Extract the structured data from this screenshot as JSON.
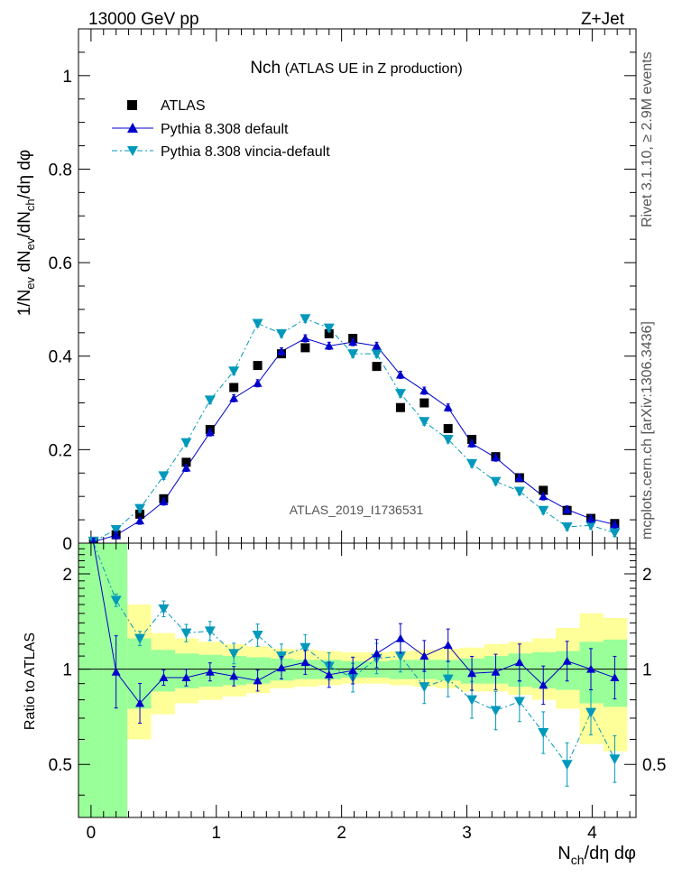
{
  "header": {
    "energy": "13000 GeV pp",
    "process": "Z+Jet",
    "plot_title_main": "Nch",
    "plot_title_sub": "(ATLAS UE in Z production)",
    "watermark": "ATLAS_2019_I1736531",
    "side_rivet": "Rivet 3.1.10, ≥ 2.9M events",
    "side_mcplots": "mcplots.cern.ch [arXiv:1306.3436]"
  },
  "chart_data": [
    {
      "type": "scatter",
      "title": "Nch (ATLAS UE in Z production)",
      "ylabel": "1/N_ev dN_ev/dN_ch/dη dφ",
      "xlabel": "N_ch/dη dφ",
      "xlim": [
        -0.1,
        4.35
      ],
      "ylim": [
        0,
        1.1
      ],
      "yticks": [
        0,
        0.2,
        0.4,
        0.6,
        0.8,
        1
      ],
      "ytick_labels": [
        "0",
        "0.2",
        "0.4",
        "0.6",
        "0.8",
        "1"
      ],
      "legend_position": "top-left",
      "x": [
        0.02,
        0.2,
        0.39,
        0.58,
        0.76,
        0.95,
        1.14,
        1.33,
        1.52,
        1.71,
        1.9,
        2.09,
        2.28,
        2.47,
        2.66,
        2.85,
        3.04,
        3.23,
        3.42,
        3.61,
        3.8,
        3.99,
        4.18
      ],
      "series": [
        {
          "name": "ATLAS",
          "color": "#000000",
          "marker": "square",
          "values": [
            0.004,
            0.018,
            0.062,
            0.095,
            0.173,
            0.243,
            0.333,
            0.38,
            0.405,
            0.418,
            0.448,
            0.438,
            0.378,
            0.29,
            0.3,
            0.245,
            0.222,
            0.185,
            0.14,
            0.113,
            0.07,
            0.053,
            0.042
          ]
        },
        {
          "name": "Pythia 8.308 default",
          "color": "#0000cc",
          "marker": "triangle-up",
          "values": [
            0.003,
            0.017,
            0.048,
            0.089,
            0.161,
            0.237,
            0.31,
            0.342,
            0.41,
            0.438,
            0.422,
            0.43,
            0.422,
            0.36,
            0.326,
            0.29,
            0.213,
            0.183,
            0.14,
            0.1,
            0.072,
            0.052,
            0.04
          ]
        },
        {
          "name": "Pythia 8.308 vincia-default",
          "color": "#0099bb",
          "marker": "triangle-down",
          "values": [
            0.004,
            0.029,
            0.074,
            0.144,
            0.215,
            0.306,
            0.368,
            0.47,
            0.448,
            0.48,
            0.46,
            0.405,
            0.405,
            0.32,
            0.26,
            0.222,
            0.17,
            0.132,
            0.111,
            0.07,
            0.035,
            0.038,
            0.022
          ]
        }
      ]
    },
    {
      "type": "scatter",
      "ylabel": "Ratio to ATLAS",
      "xlabel": "N_ch/dη dφ",
      "xlim": [
        -0.1,
        4.35
      ],
      "ylim": [
        0.34,
        2.5
      ],
      "yticks": [
        0.5,
        1,
        2
      ],
      "ytick_labels": [
        "0.5",
        "1",
        "2"
      ],
      "xticks": [
        0,
        1,
        2,
        3,
        4
      ],
      "xtick_labels": [
        "0",
        "1",
        "2",
        "3",
        "4"
      ],
      "x": [
        0.02,
        0.2,
        0.39,
        0.58,
        0.76,
        0.95,
        1.14,
        1.33,
        1.52,
        1.71,
        1.9,
        2.09,
        2.28,
        2.47,
        2.66,
        2.85,
        3.04,
        3.23,
        3.42,
        3.61,
        3.8,
        3.99,
        4.18
      ],
      "bin_edges": [
        -0.1,
        0.1,
        0.29,
        0.48,
        0.67,
        0.86,
        1.05,
        1.24,
        1.43,
        1.62,
        1.81,
        2.0,
        2.19,
        2.38,
        2.57,
        2.76,
        2.95,
        3.14,
        3.33,
        3.52,
        3.71,
        3.9,
        4.09,
        4.28
      ],
      "data_band_stat": {
        "lower": [
          0.3,
          0.3,
          0.75,
          0.85,
          0.87,
          0.88,
          0.89,
          0.9,
          0.92,
          0.93,
          0.93,
          0.94,
          0.94,
          0.93,
          0.93,
          0.92,
          0.9,
          0.9,
          0.88,
          0.87,
          0.86,
          0.78,
          0.76
        ],
        "upper": [
          2.5,
          2.5,
          1.25,
          1.15,
          1.12,
          1.11,
          1.1,
          1.09,
          1.08,
          1.07,
          1.07,
          1.06,
          1.06,
          1.07,
          1.07,
          1.07,
          1.08,
          1.1,
          1.12,
          1.13,
          1.14,
          1.22,
          1.24
        ]
      },
      "data_band_total": {
        "lower": [
          0.3,
          0.3,
          0.6,
          0.72,
          0.78,
          0.8,
          0.82,
          0.84,
          0.87,
          0.88,
          0.89,
          0.9,
          0.9,
          0.89,
          0.88,
          0.87,
          0.85,
          0.85,
          0.83,
          0.8,
          0.75,
          0.58,
          0.55
        ],
        "upper": [
          2.5,
          2.0,
          1.6,
          1.3,
          1.25,
          1.22,
          1.2,
          1.18,
          1.16,
          1.15,
          1.14,
          1.13,
          1.13,
          1.14,
          1.15,
          1.16,
          1.17,
          1.2,
          1.22,
          1.25,
          1.35,
          1.5,
          1.45
        ]
      },
      "series": [
        {
          "name": "Pythia 8.308 default",
          "color": "#0000cc",
          "values": [
            2.5,
            0.98,
            0.78,
            0.94,
            0.94,
            0.98,
            0.95,
            0.92,
            1.01,
            1.05,
            0.96,
            0.99,
            1.12,
            1.25,
            1.1,
            1.19,
            0.97,
            0.98,
            1.05,
            0.89,
            1.06,
            1.0,
            0.94
          ]
        },
        {
          "name": "Pythia 8.308 vincia-default",
          "color": "#0099bb",
          "values": [
            2.5,
            1.65,
            1.25,
            1.55,
            1.3,
            1.32,
            1.12,
            1.28,
            1.1,
            1.17,
            1.02,
            0.94,
            1.08,
            1.1,
            0.88,
            0.93,
            0.8,
            0.74,
            0.79,
            0.63,
            0.5,
            0.73,
            0.52
          ]
        }
      ]
    }
  ]
}
